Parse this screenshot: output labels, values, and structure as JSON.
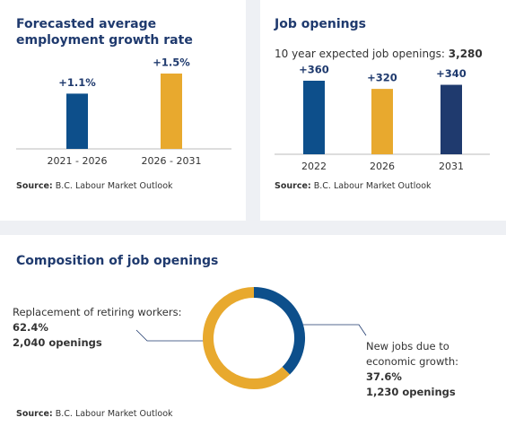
{
  "chart_data": [
    {
      "type": "bar",
      "title": "Forecasted average employment growth rate",
      "categories": [
        "2021 - 2026",
        "2026 - 2031"
      ],
      "values": [
        1.1,
        1.5
      ],
      "value_labels": [
        "+1.1%",
        "+1.5%"
      ],
      "colors": [
        "#0d4f8b",
        "#e8a92e"
      ],
      "source_label": "Source:",
      "source": "B.C. Labour Market Outlook"
    },
    {
      "type": "bar",
      "title": "Job openings",
      "subtitle": "10 year expected job openings:",
      "total": "3,280",
      "categories": [
        "2022",
        "2026",
        "2031"
      ],
      "values": [
        360,
        320,
        340
      ],
      "value_labels": [
        "+360",
        "+320",
        "+340"
      ],
      "colors": [
        "#0d4f8b",
        "#e8a92e",
        "#1f3a6e"
      ],
      "source_label": "Source:",
      "source": "B.C. Labour Market Outlook"
    },
    {
      "type": "donut",
      "title": "Composition of job openings",
      "categories": [
        "New jobs due to economic growth:",
        "Replacement of retiring workers:"
      ],
      "values": [
        37.6,
        62.4
      ],
      "value_labels": [
        "37.6%",
        "62.4%"
      ],
      "details": [
        "1,230 openings",
        "2,040 openings"
      ],
      "colors": [
        "#0d4f8b",
        "#e8a92e"
      ],
      "source_label": "Source:",
      "source": "B.C. Labour Market Outlook"
    }
  ]
}
